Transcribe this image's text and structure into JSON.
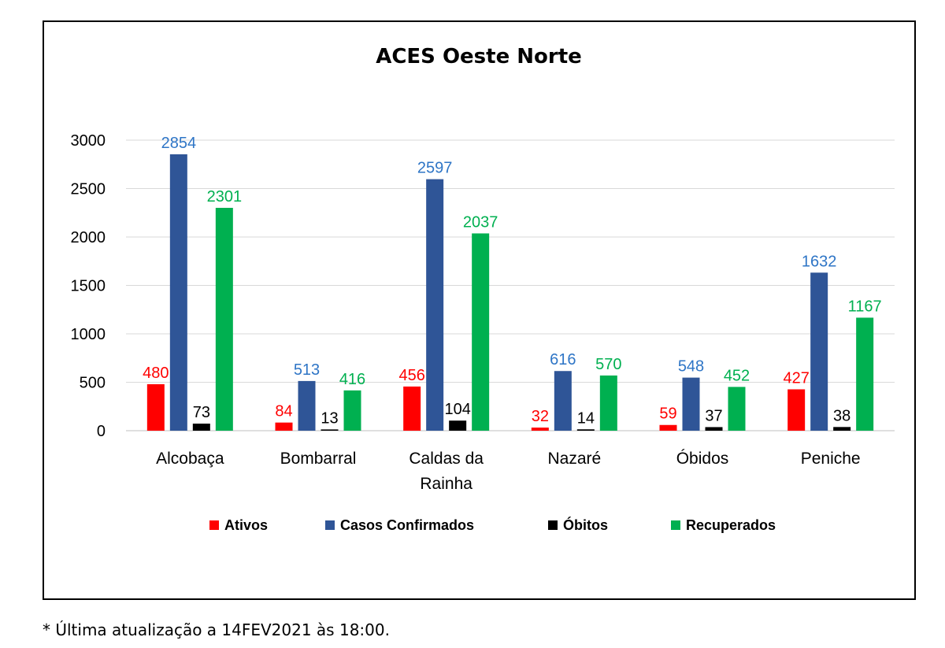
{
  "footnote": "* Última atualização a 14FEV2021 às 18:00.",
  "chart_data": {
    "type": "bar",
    "title": "ACES Oeste Norte",
    "xlabel": "",
    "ylabel": "",
    "ylim": [
      0,
      3000
    ],
    "yticks": [
      0,
      500,
      1000,
      1500,
      2000,
      2500,
      3000
    ],
    "grid": true,
    "legend_position": "bottom",
    "categories": [
      [
        "Alcobaça"
      ],
      [
        "Bombarral"
      ],
      [
        "Caldas da",
        "Rainha"
      ],
      [
        "Nazaré"
      ],
      [
        "Óbidos"
      ],
      [
        "Peniche"
      ]
    ],
    "series": [
      {
        "name": "Ativos",
        "color": "#ff0000",
        "label_color": "#ff0000",
        "values": [
          480,
          84,
          456,
          32,
          59,
          427
        ]
      },
      {
        "name": "Casos Confirmados",
        "color": "#2f5597",
        "label_color": "#2e75c6",
        "values": [
          2854,
          513,
          2597,
          616,
          548,
          1632
        ]
      },
      {
        "name": "Óbitos",
        "color": "#000000",
        "label_color": "#000000",
        "values": [
          73,
          13,
          104,
          14,
          37,
          38
        ]
      },
      {
        "name": "Recuperados",
        "color": "#00b050",
        "label_color": "#00b050",
        "values": [
          2301,
          416,
          2037,
          570,
          452,
          1167
        ]
      }
    ]
  }
}
